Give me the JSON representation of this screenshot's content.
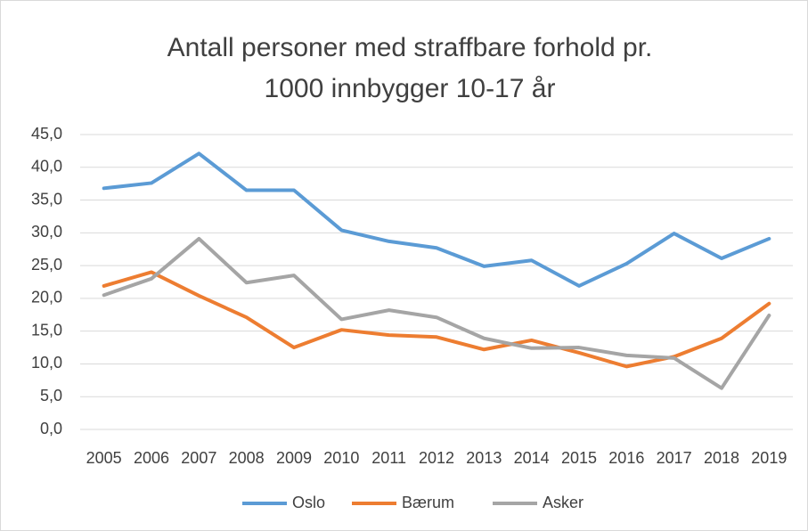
{
  "chart_data": {
    "type": "line",
    "title": [
      "Antall personer med straffbare forhold pr.",
      "1000 innbygger 10-17 år"
    ],
    "categories": [
      "2005",
      "2006",
      "2007",
      "2008",
      "2009",
      "2010",
      "2011",
      "2012",
      "2013",
      "2014",
      "2015",
      "2016",
      "2017",
      "2018",
      "2019"
    ],
    "series": [
      {
        "name": "Oslo",
        "color": "#5b9bd5",
        "values": [
          36.8,
          37.6,
          42.1,
          36.5,
          36.5,
          30.4,
          28.7,
          27.7,
          24.9,
          25.8,
          21.9,
          25.3,
          29.9,
          26.1,
          29.1
        ]
      },
      {
        "name": "Bærum",
        "color": "#ed7d31",
        "values": [
          21.9,
          24.0,
          20.4,
          17.1,
          12.5,
          15.2,
          14.4,
          14.1,
          12.2,
          13.6,
          11.7,
          9.6,
          11.1,
          13.9,
          19.2
        ]
      },
      {
        "name": "Asker",
        "color": "#a5a5a5",
        "values": [
          20.5,
          23.0,
          29.1,
          22.4,
          23.5,
          16.8,
          18.2,
          17.1,
          13.9,
          12.4,
          12.5,
          11.3,
          10.9,
          6.3,
          17.4
        ]
      }
    ],
    "ylim": [
      0,
      45
    ],
    "yticks": [
      {
        "value": 0,
        "label": "0,0"
      },
      {
        "value": 5,
        "label": "5,0"
      },
      {
        "value": 10,
        "label": "10,0"
      },
      {
        "value": 15,
        "label": "15,0"
      },
      {
        "value": 20,
        "label": "20,0"
      },
      {
        "value": 25,
        "label": "25,0"
      },
      {
        "value": 30,
        "label": "30,0"
      },
      {
        "value": 35,
        "label": "35,0"
      },
      {
        "value": 40,
        "label": "40,0"
      },
      {
        "value": 45,
        "label": "45,0"
      }
    ],
    "grid": true,
    "legend": "bottom"
  }
}
